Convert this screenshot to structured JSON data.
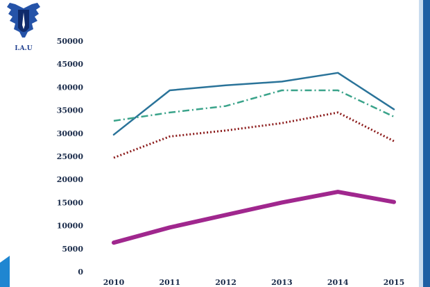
{
  "logo": {
    "text": "I.A.U",
    "accent": "#2553a8",
    "dark": "#0f2a6b"
  },
  "right_stripe_color": "#1e5fa3",
  "left_accent_color": "#1f86d1",
  "chart_data": {
    "type": "line",
    "title": "",
    "xlabel": "",
    "ylabel": "",
    "categories": [
      "2010",
      "2011",
      "2012",
      "2013",
      "2014",
      "2015"
    ],
    "yticks": [
      "0",
      "5000",
      "10000",
      "15000",
      "20000",
      "25000",
      "30000",
      "35000",
      "40000",
      "45000",
      "50000"
    ],
    "ylim": [
      0,
      50000
    ],
    "grid": false,
    "legend": "none",
    "series": [
      {
        "name": "solid-blue",
        "style": "solid",
        "color": "#2a7399",
        "width": 2.5,
        "values": [
          29700,
          39300,
          40400,
          41200,
          43100,
          35200
        ]
      },
      {
        "name": "dash-dot-green",
        "style": "dashdot",
        "color": "#3aa38a",
        "width": 2.5,
        "values": [
          32700,
          34500,
          35900,
          39300,
          39300,
          33600
        ]
      },
      {
        "name": "dotted-red",
        "style": "dotted",
        "color": "#8b1a1a",
        "width": 3,
        "values": [
          24700,
          29300,
          30600,
          32200,
          34500,
          28300
        ]
      },
      {
        "name": "thick-purple",
        "style": "solid",
        "color": "#a0278e",
        "width": 6,
        "values": [
          6300,
          9600,
          12300,
          15000,
          17300,
          15100
        ]
      }
    ]
  }
}
